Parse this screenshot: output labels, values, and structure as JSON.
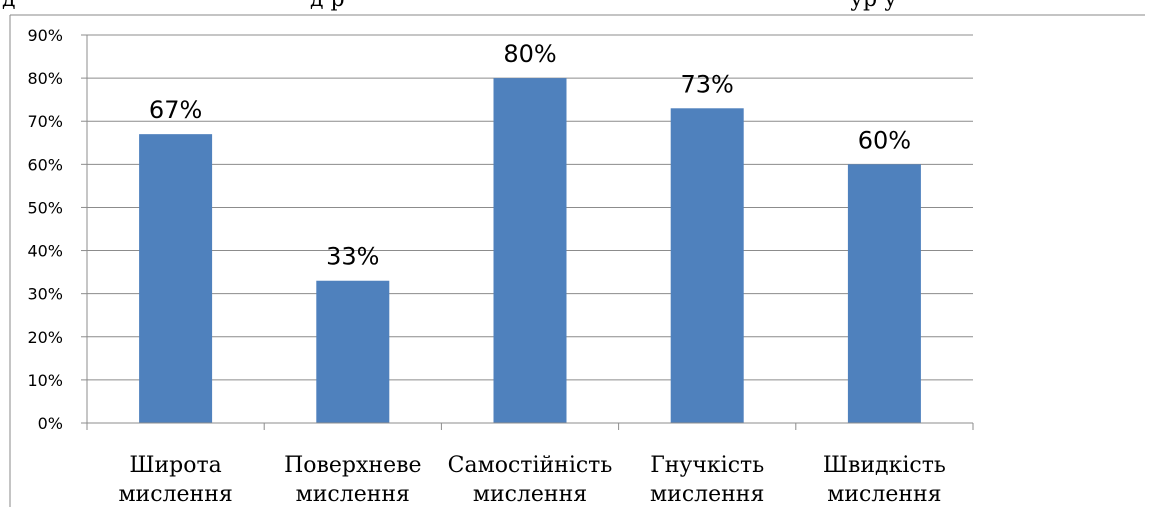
{
  "chart_data": {
    "type": "bar",
    "categories": [
      [
        "Широта",
        "мислення"
      ],
      [
        "Поверхневе",
        "мислення"
      ],
      [
        "Самостійність",
        "мислення"
      ],
      [
        "Гнучкість",
        "мислення"
      ],
      [
        "Швидкість",
        "мислення"
      ]
    ],
    "values": [
      67,
      33,
      80,
      73,
      60
    ],
    "data_labels": [
      "67%",
      "33%",
      "80%",
      "73%",
      "60%"
    ],
    "yticks": [
      "0%",
      "10%",
      "20%",
      "30%",
      "40%",
      "50%",
      "60%",
      "70%",
      "80%",
      "90%"
    ],
    "ylim": [
      0,
      90
    ],
    "ytick_step": 10,
    "grid": true,
    "bar_color": "#4f81bd",
    "title": "",
    "xlabel": "",
    "ylabel": ""
  },
  "top_text": {
    "left": "д",
    "middle": "д р",
    "right": "ур у"
  }
}
